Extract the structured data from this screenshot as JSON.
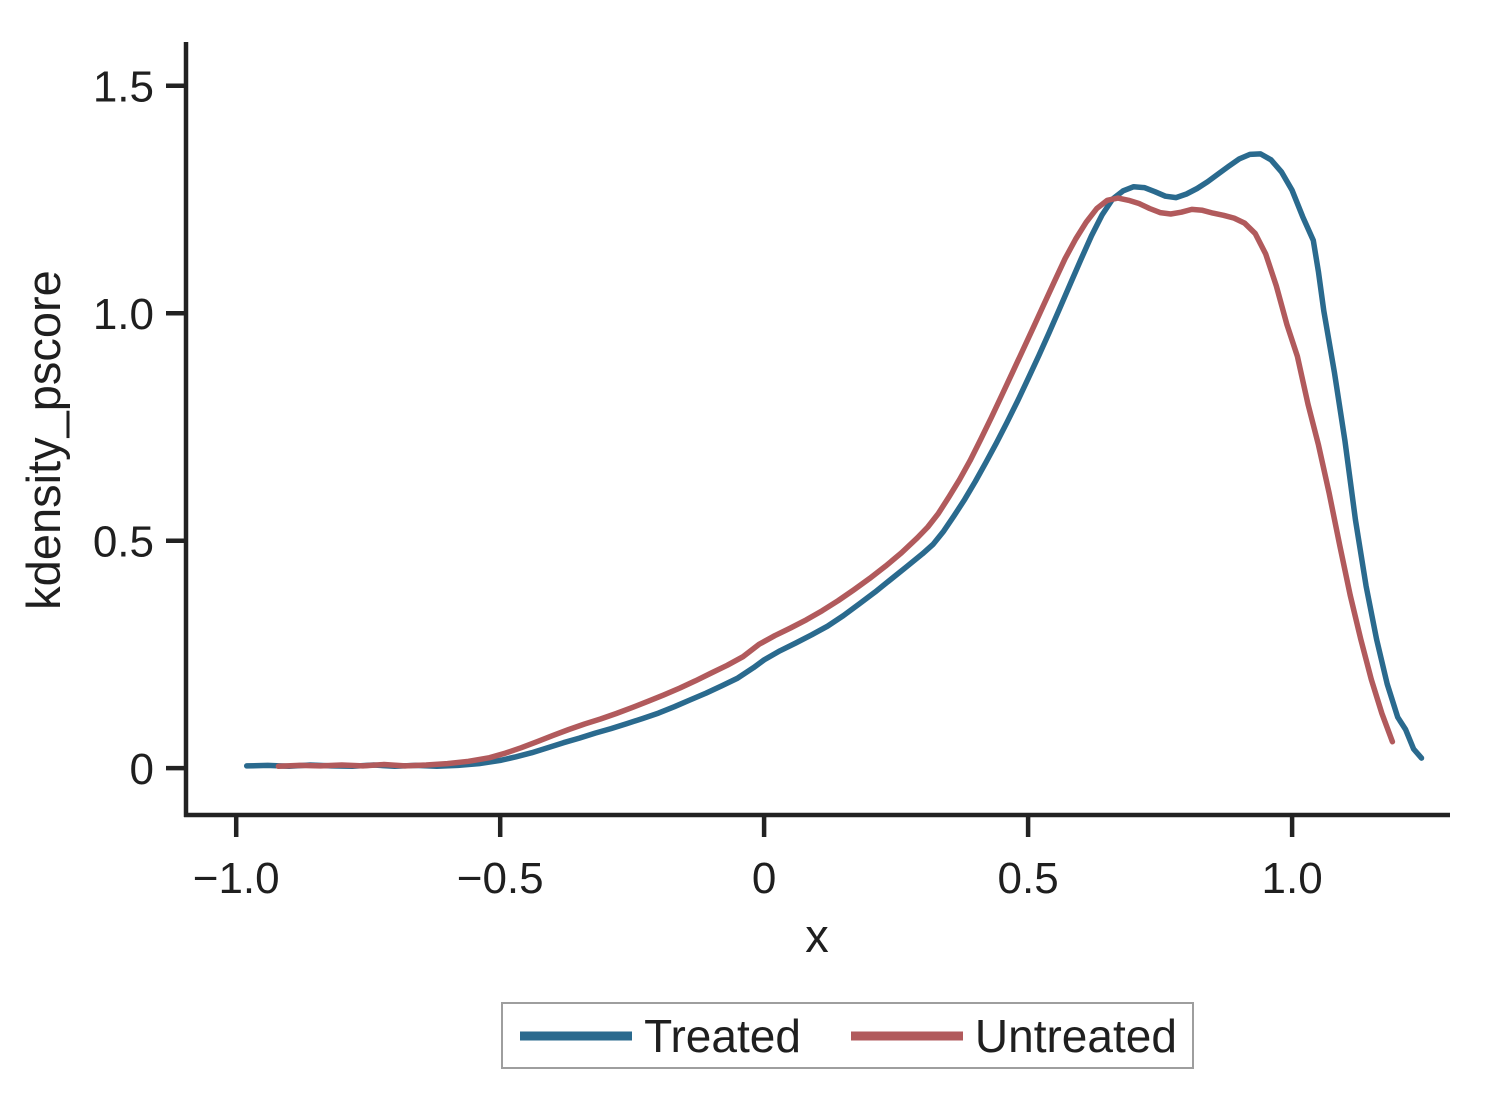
{
  "page": {
    "background": "#ffffff"
  },
  "chart_data": {
    "type": "line",
    "title": "",
    "xlabel": "x",
    "ylabel": "kdensity_pscore",
    "xlim": [
      -1.095,
      1.299
    ],
    "ylim": [
      -0.103,
      1.596
    ],
    "x_ticks": [
      -1.0,
      -0.5,
      0,
      0.5,
      1.0
    ],
    "x_tick_labels": [
      "−1.0",
      "−0.5",
      "0",
      "0.5",
      "1.0"
    ],
    "y_ticks": [
      0,
      0.5,
      1.0,
      1.5
    ],
    "y_tick_labels": [
      "0",
      "0.5",
      "1.0",
      "1.5"
    ],
    "grid": false,
    "axis_color": "#222222",
    "text_color": "#1f1f1f",
    "legend": {
      "position": "bottom-center",
      "border_color": "#9e9e9e"
    },
    "series": [
      {
        "name": "Treated",
        "color": "#2a6a8e",
        "points": [
          [
            -0.98,
            0.005
          ],
          [
            -0.94,
            0.006
          ],
          [
            -0.9,
            0.004
          ],
          [
            -0.86,
            0.007
          ],
          [
            -0.82,
            0.005
          ],
          [
            -0.78,
            0.004
          ],
          [
            -0.74,
            0.007
          ],
          [
            -0.7,
            0.004
          ],
          [
            -0.66,
            0.006
          ],
          [
            -0.62,
            0.004
          ],
          [
            -0.58,
            0.006
          ],
          [
            -0.54,
            0.01
          ],
          [
            -0.5,
            0.017
          ],
          [
            -0.47,
            0.025
          ],
          [
            -0.44,
            0.034
          ],
          [
            -0.41,
            0.045
          ],
          [
            -0.38,
            0.056
          ],
          [
            -0.35,
            0.066
          ],
          [
            -0.32,
            0.077
          ],
          [
            -0.29,
            0.087
          ],
          [
            -0.26,
            0.098
          ],
          [
            -0.23,
            0.109
          ],
          [
            -0.2,
            0.121
          ],
          [
            -0.17,
            0.135
          ],
          [
            -0.14,
            0.15
          ],
          [
            -0.11,
            0.165
          ],
          [
            -0.08,
            0.181
          ],
          [
            -0.05,
            0.198
          ],
          [
            -0.02,
            0.221
          ],
          [
            0.0,
            0.238
          ],
          [
            0.03,
            0.258
          ],
          [
            0.06,
            0.275
          ],
          [
            0.09,
            0.293
          ],
          [
            0.12,
            0.312
          ],
          [
            0.15,
            0.335
          ],
          [
            0.18,
            0.361
          ],
          [
            0.21,
            0.387
          ],
          [
            0.24,
            0.415
          ],
          [
            0.27,
            0.443
          ],
          [
            0.3,
            0.471
          ],
          [
            0.32,
            0.492
          ],
          [
            0.34,
            0.521
          ],
          [
            0.36,
            0.555
          ],
          [
            0.38,
            0.591
          ],
          [
            0.4,
            0.63
          ],
          [
            0.42,
            0.672
          ],
          [
            0.44,
            0.715
          ],
          [
            0.46,
            0.76
          ],
          [
            0.48,
            0.807
          ],
          [
            0.5,
            0.856
          ],
          [
            0.52,
            0.906
          ],
          [
            0.54,
            0.958
          ],
          [
            0.56,
            1.011
          ],
          [
            0.58,
            1.065
          ],
          [
            0.6,
            1.118
          ],
          [
            0.62,
            1.17
          ],
          [
            0.64,
            1.216
          ],
          [
            0.66,
            1.251
          ],
          [
            0.68,
            1.269
          ],
          [
            0.7,
            1.278
          ],
          [
            0.72,
            1.276
          ],
          [
            0.74,
            1.267
          ],
          [
            0.76,
            1.257
          ],
          [
            0.78,
            1.254
          ],
          [
            0.8,
            1.262
          ],
          [
            0.82,
            1.274
          ],
          [
            0.84,
            1.289
          ],
          [
            0.86,
            1.306
          ],
          [
            0.88,
            1.323
          ],
          [
            0.9,
            1.339
          ],
          [
            0.92,
            1.349
          ],
          [
            0.94,
            1.35
          ],
          [
            0.96,
            1.337
          ],
          [
            0.98,
            1.31
          ],
          [
            1.0,
            1.27
          ],
          [
            1.02,
            1.212
          ],
          [
            1.04,
            1.16
          ],
          [
            1.05,
            1.09
          ],
          [
            1.06,
            1.005
          ],
          [
            1.08,
            0.87
          ],
          [
            1.1,
            0.72
          ],
          [
            1.12,
            0.545
          ],
          [
            1.14,
            0.4
          ],
          [
            1.16,
            0.283
          ],
          [
            1.18,
            0.185
          ],
          [
            1.2,
            0.112
          ],
          [
            1.215,
            0.085
          ],
          [
            1.23,
            0.042
          ],
          [
            1.245,
            0.022
          ]
        ]
      },
      {
        "name": "Untreated",
        "color": "#b15a5c",
        "points": [
          [
            -0.92,
            0.004
          ],
          [
            -0.88,
            0.006
          ],
          [
            -0.84,
            0.005
          ],
          [
            -0.8,
            0.007
          ],
          [
            -0.76,
            0.005
          ],
          [
            -0.72,
            0.008
          ],
          [
            -0.68,
            0.005
          ],
          [
            -0.64,
            0.007
          ],
          [
            -0.6,
            0.01
          ],
          [
            -0.56,
            0.015
          ],
          [
            -0.52,
            0.023
          ],
          [
            -0.49,
            0.033
          ],
          [
            -0.46,
            0.045
          ],
          [
            -0.43,
            0.058
          ],
          [
            -0.4,
            0.072
          ],
          [
            -0.37,
            0.085
          ],
          [
            -0.34,
            0.097
          ],
          [
            -0.31,
            0.108
          ],
          [
            -0.28,
            0.12
          ],
          [
            -0.25,
            0.133
          ],
          [
            -0.22,
            0.147
          ],
          [
            -0.19,
            0.161
          ],
          [
            -0.16,
            0.176
          ],
          [
            -0.13,
            0.192
          ],
          [
            -0.1,
            0.209
          ],
          [
            -0.07,
            0.226
          ],
          [
            -0.04,
            0.245
          ],
          [
            -0.01,
            0.272
          ],
          [
            0.02,
            0.291
          ],
          [
            0.05,
            0.308
          ],
          [
            0.08,
            0.326
          ],
          [
            0.11,
            0.346
          ],
          [
            0.14,
            0.368
          ],
          [
            0.17,
            0.392
          ],
          [
            0.2,
            0.417
          ],
          [
            0.23,
            0.444
          ],
          [
            0.26,
            0.473
          ],
          [
            0.29,
            0.506
          ],
          [
            0.31,
            0.53
          ],
          [
            0.33,
            0.56
          ],
          [
            0.35,
            0.596
          ],
          [
            0.37,
            0.634
          ],
          [
            0.39,
            0.676
          ],
          [
            0.41,
            0.722
          ],
          [
            0.43,
            0.77
          ],
          [
            0.45,
            0.819
          ],
          [
            0.47,
            0.869
          ],
          [
            0.49,
            0.919
          ],
          [
            0.51,
            0.969
          ],
          [
            0.53,
            1.02
          ],
          [
            0.55,
            1.07
          ],
          [
            0.57,
            1.12
          ],
          [
            0.59,
            1.163
          ],
          [
            0.61,
            1.2
          ],
          [
            0.63,
            1.23
          ],
          [
            0.65,
            1.248
          ],
          [
            0.67,
            1.253
          ],
          [
            0.69,
            1.248
          ],
          [
            0.71,
            1.241
          ],
          [
            0.73,
            1.23
          ],
          [
            0.75,
            1.221
          ],
          [
            0.77,
            1.218
          ],
          [
            0.79,
            1.222
          ],
          [
            0.81,
            1.228
          ],
          [
            0.83,
            1.226
          ],
          [
            0.85,
            1.22
          ],
          [
            0.87,
            1.215
          ],
          [
            0.89,
            1.209
          ],
          [
            0.91,
            1.198
          ],
          [
            0.93,
            1.175
          ],
          [
            0.95,
            1.13
          ],
          [
            0.97,
            1.06
          ],
          [
            0.99,
            0.975
          ],
          [
            1.01,
            0.905
          ],
          [
            1.03,
            0.8
          ],
          [
            1.05,
            0.71
          ],
          [
            1.07,
            0.605
          ],
          [
            1.09,
            0.49
          ],
          [
            1.11,
            0.38
          ],
          [
            1.13,
            0.283
          ],
          [
            1.15,
            0.195
          ],
          [
            1.17,
            0.12
          ],
          [
            1.19,
            0.058
          ]
        ]
      }
    ]
  }
}
